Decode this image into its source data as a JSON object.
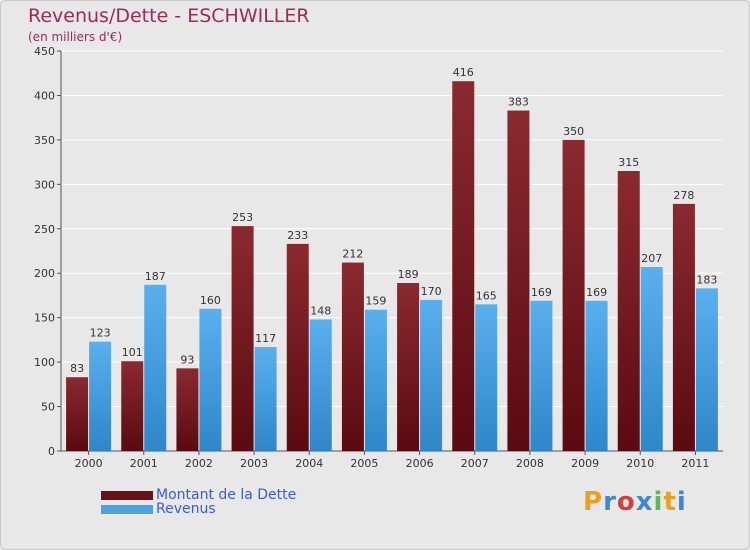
{
  "header": {
    "title": "Revenus/Dette - ESCHWILLER",
    "subtitle": "(en milliers d'€)"
  },
  "chart_data": {
    "type": "bar",
    "categories": [
      "2000",
      "2001",
      "2002",
      "2003",
      "2004",
      "2005",
      "2006",
      "2007",
      "2008",
      "2009",
      "2010",
      "2011"
    ],
    "series": [
      {
        "name": "Montant de la Dette",
        "color": "#7a1f24",
        "values": [
          83,
          101,
          93,
          253,
          233,
          212,
          189,
          416,
          383,
          350,
          315,
          278
        ]
      },
      {
        "name": "Revenus",
        "color": "#4aa3e6",
        "values": [
          123,
          187,
          160,
          117,
          148,
          159,
          170,
          165,
          169,
          169,
          207,
          183
        ]
      }
    ],
    "yticks": [
      0,
      50,
      100,
      150,
      200,
      250,
      300,
      350,
      400,
      450
    ],
    "ylim": [
      0,
      450
    ],
    "grid": true,
    "legend_position": "bottom-left"
  },
  "legend": {
    "items": [
      {
        "label": "Montant de la Dette",
        "color": "#6b1016"
      },
      {
        "label": "Revenus",
        "color": "#4aa3e6"
      }
    ]
  },
  "logo": {
    "letters": [
      "P",
      "r",
      "o",
      "x",
      "i",
      "t",
      "i"
    ],
    "colors": [
      "#e8a020",
      "#3b8ad8",
      "#d83c3c",
      "#3b8ad8",
      "#5cb85c",
      "#e8a020",
      "#3b8ad8"
    ]
  }
}
